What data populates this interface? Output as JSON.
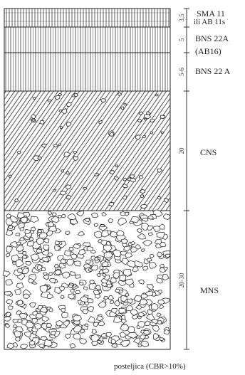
{
  "layers": [
    {
      "id": "sma",
      "label_lines": [
        "SMA 11",
        "ili AB 11s"
      ],
      "thickness": "3,5"
    },
    {
      "id": "bns22a-ab16",
      "label_lines": [
        "BNS 22A",
        "(AB16)"
      ],
      "thickness": "5"
    },
    {
      "id": "bns22a",
      "label_lines": [
        "BNS 22 A"
      ],
      "thickness": "5-6"
    },
    {
      "id": "cns",
      "label_lines": [
        "CNS"
      ],
      "thickness": "20"
    },
    {
      "id": "mns",
      "label_lines": [
        "MNS"
      ],
      "thickness": "20-30"
    }
  ],
  "subgrade_label": "posteljica (CBR>10%)"
}
